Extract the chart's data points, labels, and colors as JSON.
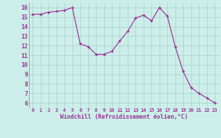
{
  "x": [
    0,
    1,
    2,
    3,
    4,
    5,
    6,
    7,
    8,
    9,
    10,
    11,
    12,
    13,
    14,
    15,
    16,
    17,
    18,
    19,
    20,
    21,
    22,
    23
  ],
  "y": [
    15.3,
    15.3,
    15.5,
    15.6,
    15.7,
    16.0,
    12.2,
    11.9,
    11.1,
    11.1,
    11.4,
    12.5,
    13.5,
    14.9,
    15.2,
    14.6,
    16.0,
    15.1,
    11.9,
    9.3,
    7.6,
    7.0,
    6.5,
    6.0
  ],
  "line_color": "#993399",
  "marker": "+",
  "bg_color": "#cceee8",
  "grid_color": "#aacccc",
  "xlabel": "Windchill (Refroidissement éolien,°C)",
  "xlim": [
    -0.5,
    23.5
  ],
  "ylim": [
    5.5,
    16.5
  ],
  "yticks": [
    6,
    7,
    8,
    9,
    10,
    11,
    12,
    13,
    14,
    15,
    16
  ],
  "xtick_labels": [
    "0",
    "1",
    "2",
    "3",
    "4",
    "5",
    "6",
    "7",
    "8",
    "9",
    "10",
    "11",
    "12",
    "13",
    "14",
    "15",
    "16",
    "17",
    "18",
    "19",
    "20",
    "21",
    "22",
    "23"
  ]
}
